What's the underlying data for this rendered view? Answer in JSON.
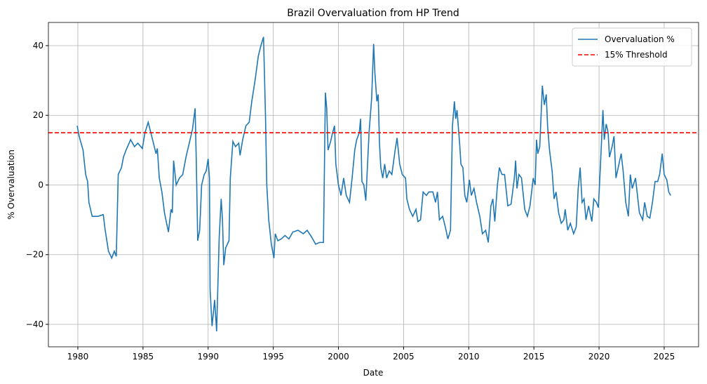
{
  "chart_data": {
    "type": "line",
    "title": "Brazil Overvaluation from HP Trend",
    "xlabel": "Date",
    "ylabel": "% Overvaluation",
    "x": [
      1979.95,
      1980.1,
      1980.4,
      1980.6,
      1980.75,
      1980.85,
      1981.1,
      1981.3,
      1981.55,
      1981.95,
      1982.1,
      1982.35,
      1982.6,
      1982.8,
      1982.95,
      1983.1,
      1983.35,
      1983.5,
      1983.7,
      1984.05,
      1984.35,
      1984.6,
      1984.95,
      1985.15,
      1985.4,
      1985.6,
      1985.8,
      1986.0,
      1986.1,
      1986.25,
      1986.45,
      1986.65,
      1986.95,
      1987.15,
      1987.25,
      1987.35,
      1987.55,
      1987.8,
      1988.05,
      1988.3,
      1988.55,
      1988.8,
      1989.0,
      1989.1,
      1989.2,
      1989.35,
      1989.5,
      1989.7,
      1989.85,
      1990.0,
      1990.1,
      1990.15,
      1990.3,
      1990.5,
      1990.65,
      1990.85,
      1991.0,
      1991.1,
      1991.2,
      1991.35,
      1991.6,
      1991.7,
      1991.9,
      1992.1,
      1992.35,
      1992.45,
      1992.65,
      1992.9,
      1993.15,
      1993.35,
      1993.6,
      1993.85,
      1994.05,
      1994.25,
      1994.4,
      1994.5,
      1994.65,
      1994.85,
      1995.05,
      1995.15,
      1995.35,
      1995.6,
      1995.9,
      1996.2,
      1996.5,
      1996.9,
      1997.3,
      1997.6,
      1997.95,
      1998.25,
      1998.55,
      1998.85,
      1999.0,
      1999.1,
      1999.2,
      1999.4,
      1999.55,
      1999.7,
      1999.8,
      2000.0,
      2000.2,
      2000.4,
      2000.6,
      2000.85,
      2001.05,
      2001.25,
      2001.4,
      2001.6,
      2001.7,
      2001.8,
      2001.95,
      2002.1,
      2002.35,
      2002.55,
      2002.7,
      2002.8,
      2002.95,
      2003.05,
      2003.15,
      2003.25,
      2003.4,
      2003.55,
      2003.7,
      2003.9,
      2004.1,
      2004.35,
      2004.5,
      2004.7,
      2004.9,
      2005.15,
      2005.25,
      2005.45,
      2005.7,
      2005.95,
      2006.1,
      2006.3,
      2006.5,
      2006.75,
      2006.95,
      2007.25,
      2007.45,
      2007.6,
      2007.75,
      2008.0,
      2008.2,
      2008.4,
      2008.6,
      2008.75,
      2008.9,
      2009.0,
      2009.1,
      2009.3,
      2009.4,
      2009.55,
      2009.7,
      2009.85,
      2010.05,
      2010.2,
      2010.4,
      2010.6,
      2010.85,
      2011.05,
      2011.3,
      2011.5,
      2011.7,
      2011.85,
      2012.0,
      2012.2,
      2012.35,
      2012.55,
      2012.75,
      2013.0,
      2013.25,
      2013.5,
      2013.6,
      2013.7,
      2013.85,
      2014.05,
      2014.3,
      2014.5,
      2014.7,
      2014.95,
      2015.1,
      2015.2,
      2015.3,
      2015.45,
      2015.65,
      2015.8,
      2015.95,
      2016.05,
      2016.2,
      2016.4,
      2016.55,
      2016.7,
      2016.9,
      2017.1,
      2017.3,
      2017.4,
      2017.6,
      2017.8,
      2018.05,
      2018.25,
      2018.4,
      2018.55,
      2018.7,
      2018.85,
      2019.0,
      2019.2,
      2019.45,
      2019.6,
      2019.8,
      2019.95,
      2020.1,
      2020.3,
      2020.4,
      2020.55,
      2020.7,
      2020.8,
      2021.0,
      2021.15,
      2021.3,
      2021.5,
      2021.7,
      2021.85,
      2022.05,
      2022.25,
      2022.4,
      2022.55,
      2022.8,
      2022.95,
      2023.1,
      2023.35,
      2023.5,
      2023.7,
      2023.9,
      2024.1,
      2024.3,
      2024.5,
      2024.65,
      2024.85,
      2025.0,
      2025.2,
      2025.35,
      2025.5
    ],
    "series": [
      {
        "name": "Overvaluation %",
        "color": "#1f77b4",
        "values": [
          17,
          14,
          10,
          3,
          1,
          -5,
          -9,
          -9,
          -9,
          -8.5,
          -13,
          -19,
          -21,
          -19,
          -20.5,
          3,
          5,
          8,
          10,
          13,
          11,
          12,
          10.5,
          15,
          18,
          15,
          12,
          9,
          10.5,
          2,
          -2,
          -8,
          -13.5,
          -7,
          -8,
          7,
          0,
          2,
          3,
          8,
          12,
          16,
          22,
          5,
          -16,
          -13,
          0,
          3,
          4,
          7.5,
          2,
          -30,
          -40.5,
          -33,
          -42,
          -15,
          -4,
          -10,
          -23,
          -18,
          -16,
          2,
          12.5,
          11,
          12,
          8.5,
          13,
          17,
          18,
          24,
          30,
          37,
          40,
          42.5,
          20,
          0,
          -10,
          -17,
          -21,
          -14,
          -16,
          -15.5,
          -14.5,
          -15.5,
          -13.5,
          -13,
          -14,
          -13,
          -15,
          -17,
          -16.5,
          -16.5,
          26.5,
          22,
          10,
          12.5,
          15,
          17,
          6,
          0,
          -3,
          2,
          -3,
          -5,
          2,
          10,
          13,
          15,
          19,
          1,
          0,
          -4.5,
          15,
          25,
          40.5,
          32,
          24,
          26,
          12,
          5,
          2,
          6,
          2,
          4,
          3,
          10,
          13.5,
          6,
          3,
          2,
          -4,
          -7,
          -9,
          -7,
          -10.5,
          -10,
          -2,
          -3,
          -2,
          -2,
          -5,
          -2,
          -10,
          -9,
          -12,
          -15.5,
          -13,
          17,
          24,
          19,
          21.5,
          12,
          6,
          5,
          -3,
          -5,
          1.5,
          -3,
          -1,
          -5,
          -9,
          -14,
          -13,
          -16.5,
          -6,
          -4,
          -10.5,
          0,
          5,
          3,
          3,
          -6,
          -5.5,
          2,
          7,
          -1,
          3,
          2,
          -7,
          -9,
          -6,
          2,
          0,
          13,
          9,
          11,
          28.5,
          23,
          26,
          17,
          10,
          4,
          -4,
          -2,
          -8,
          -11,
          -10,
          -7,
          -13,
          -11,
          -14,
          -12,
          -1,
          5,
          -5,
          -4,
          -10,
          -6,
          -10.5,
          -4,
          -5,
          -6.5,
          5,
          21.5,
          13,
          17.5,
          15,
          8,
          11,
          14,
          2,
          5.5,
          9,
          4,
          -5,
          -9,
          3,
          -1,
          2,
          -3,
          -8,
          -10,
          -5,
          -9,
          -9.5,
          -5,
          1,
          1,
          3,
          9,
          3,
          1.5,
          -2,
          -3
        ]
      }
    ],
    "hlines": [
      {
        "name": "15% Threshold",
        "value": 15,
        "color": "#ff0000"
      }
    ],
    "xlim": [
      1977.74,
      2027.64
    ],
    "xticks": [
      1980,
      1985,
      1990,
      1995,
      2000,
      2005,
      2010,
      2015,
      2020,
      2025
    ],
    "ylim": [
      -46.45,
      46.65
    ],
    "yticks": [
      {
        "value": -40,
        "label": "−40"
      },
      {
        "value": -20,
        "label": "−20"
      },
      0,
      20,
      40
    ],
    "grid": true,
    "legend": "upper right"
  }
}
